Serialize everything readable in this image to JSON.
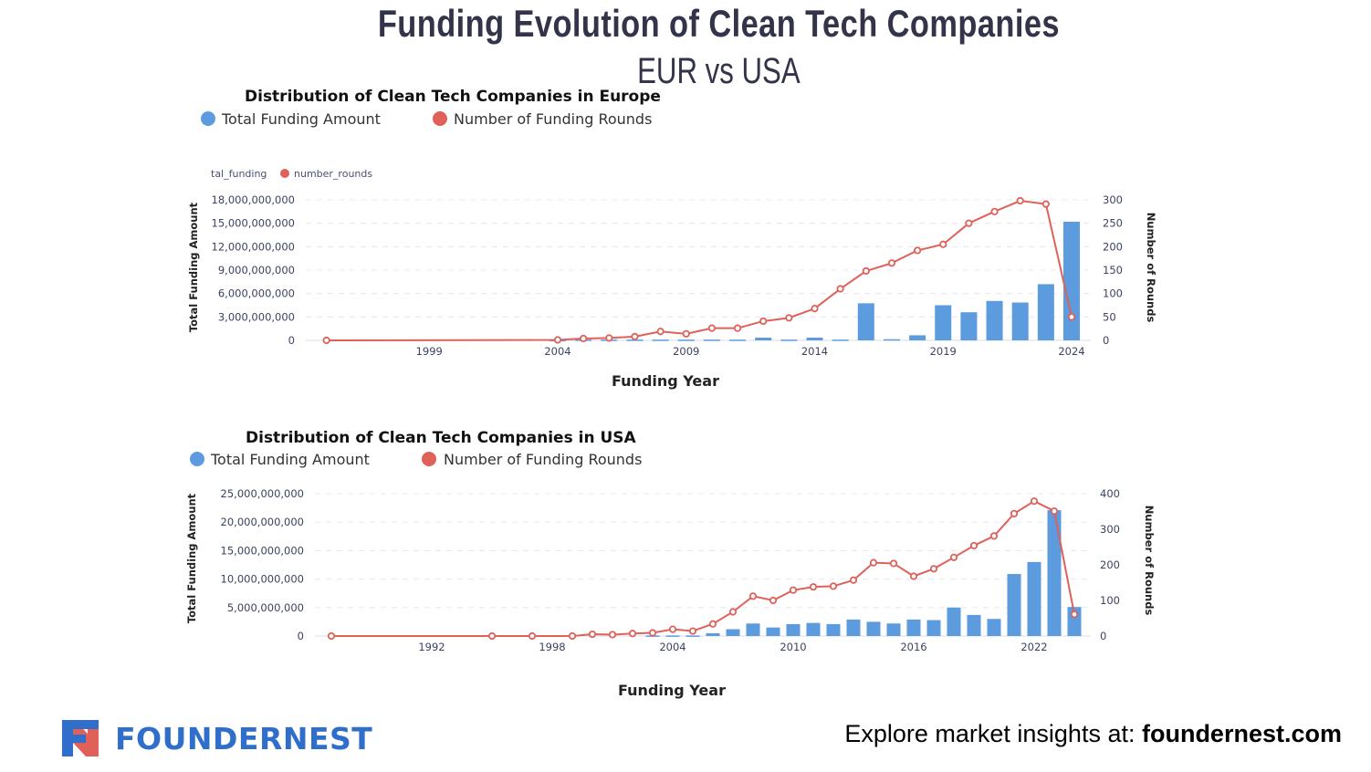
{
  "header": {
    "title": "Funding Evolution of Clean Tech Companies",
    "subtitle": "EUR vs USA"
  },
  "footer": {
    "brand": "FOUNDERNEST",
    "cta_prefix": "Explore market insights at: ",
    "cta_link": "foundernest.com"
  },
  "colors": {
    "funding": "#5b9bde",
    "rounds": "#e0605a",
    "text": "#33334a",
    "brand": "#2f6fcb"
  },
  "chart_data": [
    {
      "type": "bar+line",
      "title": "Distribution of Clean Tech Companies in Europe",
      "legend": [
        "Total Funding Amount",
        "Number of Funding Rounds"
      ],
      "inner_legend": [
        "tal_funding",
        "number_rounds"
      ],
      "xlabel": "Funding Year",
      "ylabel_left": "Total Funding Amount",
      "ylabel_right": "Number of Rounds",
      "x_ticks": [
        "1999",
        "2004",
        "2009",
        "2014",
        "2019",
        "2024"
      ],
      "y_left_ticks": [
        "0",
        "3,000,000,000",
        "6,000,000,000",
        "9,000,000,000",
        "12,000,000,000",
        "15,000,000,000",
        "18,000,000,000"
      ],
      "y_right_ticks": [
        "0",
        "50",
        "100",
        "150",
        "200",
        "250",
        "300"
      ],
      "ylim_left": [
        0,
        18000000000
      ],
      "ylim_right": [
        0,
        300
      ],
      "grid": true,
      "funding": {
        "years": [
          2004,
          2005,
          2006,
          2007,
          2008,
          2009,
          2010,
          2011,
          2012,
          2013,
          2014,
          2015,
          2016,
          2017,
          2018,
          2019,
          2020,
          2021,
          2022,
          2023,
          2024
        ],
        "values": [
          50000000,
          100000000,
          100000000,
          100000000,
          100000000,
          100000000,
          100000000,
          100000000,
          350000000,
          100000000,
          350000000,
          100000000,
          4750000000,
          150000000,
          650000000,
          4500000000,
          3600000000,
          5050000000,
          4850000000,
          7200000000,
          15200000000
        ]
      },
      "rounds": {
        "years": [
          1995,
          2004,
          2005,
          2006,
          2007,
          2008,
          2009,
          2010,
          2011,
          2012,
          2013,
          2014,
          2015,
          2016,
          2017,
          2018,
          2019,
          2020,
          2021,
          2022,
          2023,
          2024
        ],
        "values": [
          0,
          1,
          4,
          5,
          8,
          19,
          14,
          26,
          26,
          41,
          48,
          68,
          110,
          148,
          165,
          192,
          205,
          250,
          275,
          298,
          291,
          50
        ]
      }
    },
    {
      "type": "bar+line",
      "title": "Distribution of Clean Tech Companies in USA",
      "legend": [
        "Total Funding Amount",
        "Number of Funding Rounds"
      ],
      "xlabel": "Funding Year",
      "ylabel_left": "Total Funding Amount",
      "ylabel_right": "Number of Rounds",
      "x_ticks": [
        "1992",
        "1998",
        "2004",
        "2010",
        "2016",
        "2022"
      ],
      "y_left_ticks": [
        "0",
        "5,000,000,000",
        "10,000,000,000",
        "15,000,000,000",
        "20,000,000,000",
        "25,000,000,000"
      ],
      "y_right_ticks": [
        "0",
        "100",
        "200",
        "300",
        "400"
      ],
      "ylim_left": [
        0,
        25000000000
      ],
      "ylim_right": [
        0,
        400
      ],
      "grid": true,
      "funding": {
        "years": [
          2003,
          2004,
          2005,
          2006,
          2007,
          2008,
          2009,
          2010,
          2011,
          2012,
          2013,
          2014,
          2015,
          2016,
          2017,
          2018,
          2019,
          2020,
          2021,
          2022,
          2023,
          2024
        ],
        "values": [
          100000000,
          100000000,
          100000000,
          500000000,
          1200000000,
          2200000000,
          1500000000,
          2100000000,
          2300000000,
          2100000000,
          2900000000,
          2500000000,
          2200000000,
          2900000000,
          2800000000,
          5000000000,
          3700000000,
          3000000000,
          10900000000,
          13000000000,
          22100000000,
          5100000000
        ]
      },
      "rounds": {
        "years": [
          1987,
          1995,
          1997,
          1999,
          2000,
          2001,
          2002,
          2003,
          2004,
          2005,
          2006,
          2007,
          2008,
          2009,
          2010,
          2011,
          2012,
          2013,
          2014,
          2015,
          2016,
          2017,
          2018,
          2019,
          2020,
          2021,
          2022,
          2023,
          2024
        ],
        "values": [
          0,
          0,
          0,
          0,
          5,
          4,
          7,
          9,
          19,
          14,
          34,
          68,
          112,
          100,
          129,
          138,
          140,
          157,
          206,
          204,
          168,
          189,
          221,
          254,
          281,
          344,
          379,
          351,
          61
        ]
      }
    }
  ]
}
